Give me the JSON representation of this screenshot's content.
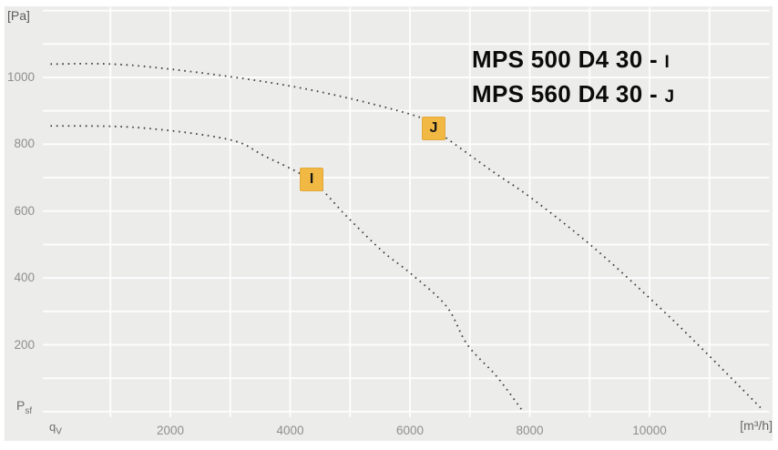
{
  "titles": [
    {
      "model": "MPS 500 D4 30 -",
      "code": "I"
    },
    {
      "model": "MPS 560 D4 30 -",
      "code": "J"
    }
  ],
  "axes": {
    "y_unit": "[Pa]",
    "x_unit": "[m³/h]",
    "y_symbol": {
      "base": "P",
      "sub": "sf"
    },
    "x_symbol": {
      "base": "q",
      "sub": "V"
    },
    "x_ticks": [
      "2000",
      "4000",
      "6000",
      "8000",
      "10000"
    ],
    "y_ticks": [
      "200",
      "400",
      "600",
      "800",
      "1000"
    ]
  },
  "chart_data": {
    "type": "line",
    "style": "dotted",
    "title": "Fan pressure curves",
    "xlabel": "qV [m³/h]",
    "ylabel": "Psf [Pa]",
    "xlim": [
      0,
      12000
    ],
    "ylim": [
      0,
      1200
    ],
    "grid": {
      "on": true,
      "x_step": 1000,
      "y_step": 100,
      "labeled_x_step": 2000,
      "labeled_y_step": 200
    },
    "legend_position": "top-right-inside",
    "series": [
      {
        "name": "MPS 500 D4 30 - I",
        "marker": "I",
        "points": [
          [
            0,
            855
          ],
          [
            1450,
            850
          ],
          [
            2960,
            815
          ],
          [
            3570,
            765
          ],
          [
            4360,
            690
          ],
          [
            4940,
            585
          ],
          [
            5540,
            480
          ],
          [
            6000,
            415
          ],
          [
            6610,
            315
          ],
          [
            6960,
            200
          ],
          [
            7450,
            105
          ],
          [
            7890,
            0
          ]
        ]
      },
      {
        "name": "MPS 560 D4 30 - J",
        "marker": "J",
        "points": [
          [
            0,
            1040
          ],
          [
            1440,
            1035
          ],
          [
            3980,
            975
          ],
          [
            6000,
            890
          ],
          [
            6400,
            845
          ],
          [
            7370,
            720
          ],
          [
            8020,
            640
          ],
          [
            9040,
            495
          ],
          [
            10060,
            330
          ],
          [
            10840,
            195
          ],
          [
            11890,
            5
          ]
        ]
      }
    ],
    "markers": [
      {
        "label": "I",
        "q": 4360,
        "p": 695
      },
      {
        "label": "J",
        "q": 6395,
        "p": 847
      }
    ]
  },
  "colors": {
    "panel_bg": "#ececeb",
    "grid": "#fdfdfd",
    "curve": "#3b3b3b",
    "marker_bg": "#f1b844",
    "marker_text": "#161616",
    "tick_text": "#8f8f8f",
    "unit_text": "#666666",
    "title_text": "#0b0b0b"
  }
}
